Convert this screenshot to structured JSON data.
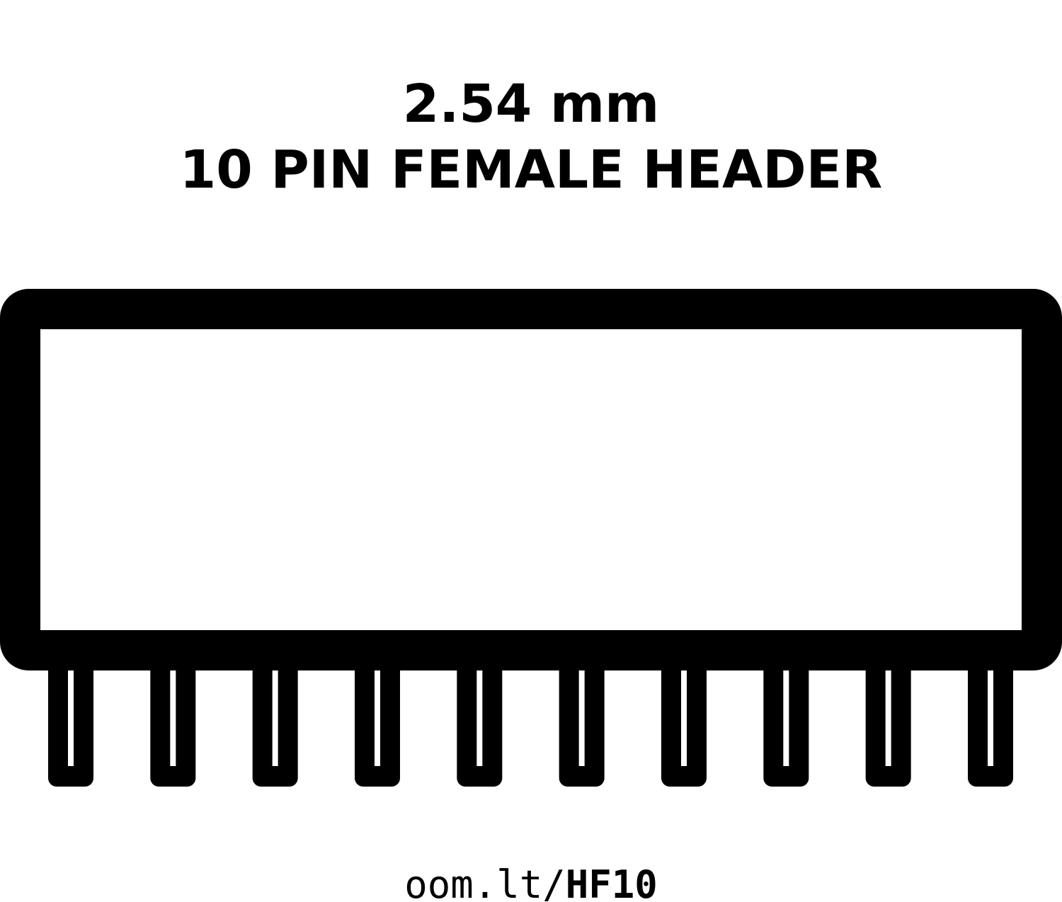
{
  "title": {
    "line1": "2.54 mm",
    "line2": "10 PIN FEMALE HEADER"
  },
  "footer": {
    "prefix": "oom.lt/",
    "code": "HF10"
  },
  "part": {
    "pin_count": 10,
    "pitch": "2.54 mm",
    "type": "female header"
  },
  "colors": {
    "ink": "#000000",
    "background": "#ffffff"
  }
}
